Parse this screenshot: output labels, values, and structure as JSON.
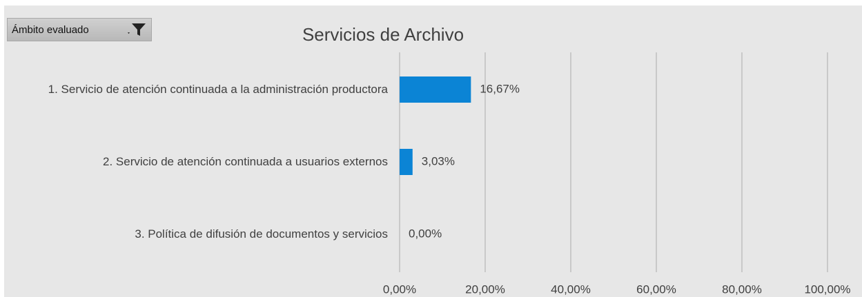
{
  "filter_button": {
    "label": "Ámbito evaluado"
  },
  "chart_data": {
    "type": "hbar",
    "title": "Servicios de Archivo",
    "categories": [
      "1. Servicio de atención continuada a la administración productora",
      "2. Servicio de atención continuada a usuarios externos",
      "3. Política de difusión de documentos y servicios"
    ],
    "values": [
      16.67,
      3.03,
      0
    ],
    "value_labels": [
      "16,67%",
      "3,03%",
      "0,00%"
    ],
    "color": "#0b84d5",
    "xlim": [
      0,
      100
    ],
    "xticks": [
      {
        "value": 0,
        "label": "0,00%"
      },
      {
        "value": 20,
        "label": "20,00%"
      },
      {
        "value": 40,
        "label": "40,00%"
      },
      {
        "value": 60,
        "label": "60,00%"
      },
      {
        "value": 80,
        "label": "80,00%"
      },
      {
        "value": 100,
        "label": "100,00%"
      }
    ],
    "grid": true
  }
}
